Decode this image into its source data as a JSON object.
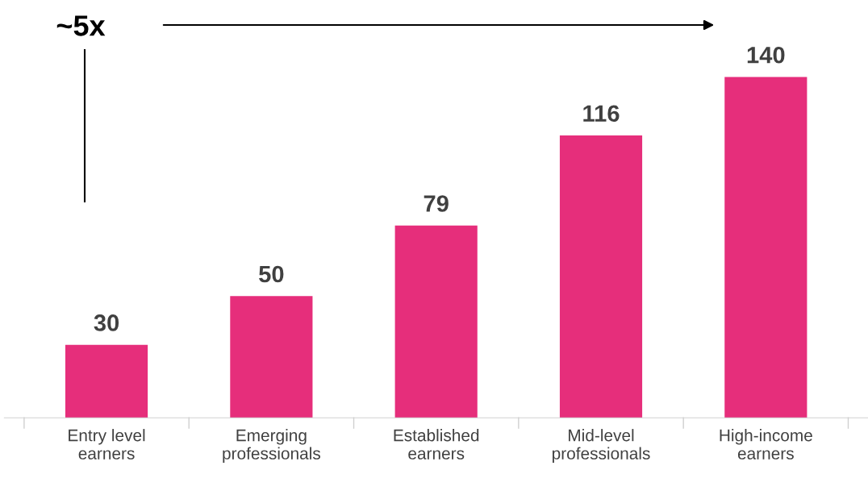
{
  "chart_data": {
    "type": "bar",
    "categories": [
      "Entry level\nearners",
      "Emerging\nprofessionals",
      "Established\nearners",
      "Mid-level\nprofessionals",
      "High-income\nearners"
    ],
    "values": [
      30,
      50,
      79,
      116,
      140
    ],
    "color": "#e62e7b",
    "data_labels": true,
    "grid": false,
    "legend": false,
    "tick_labels": "x",
    "annotations": [
      "~5x"
    ]
  }
}
